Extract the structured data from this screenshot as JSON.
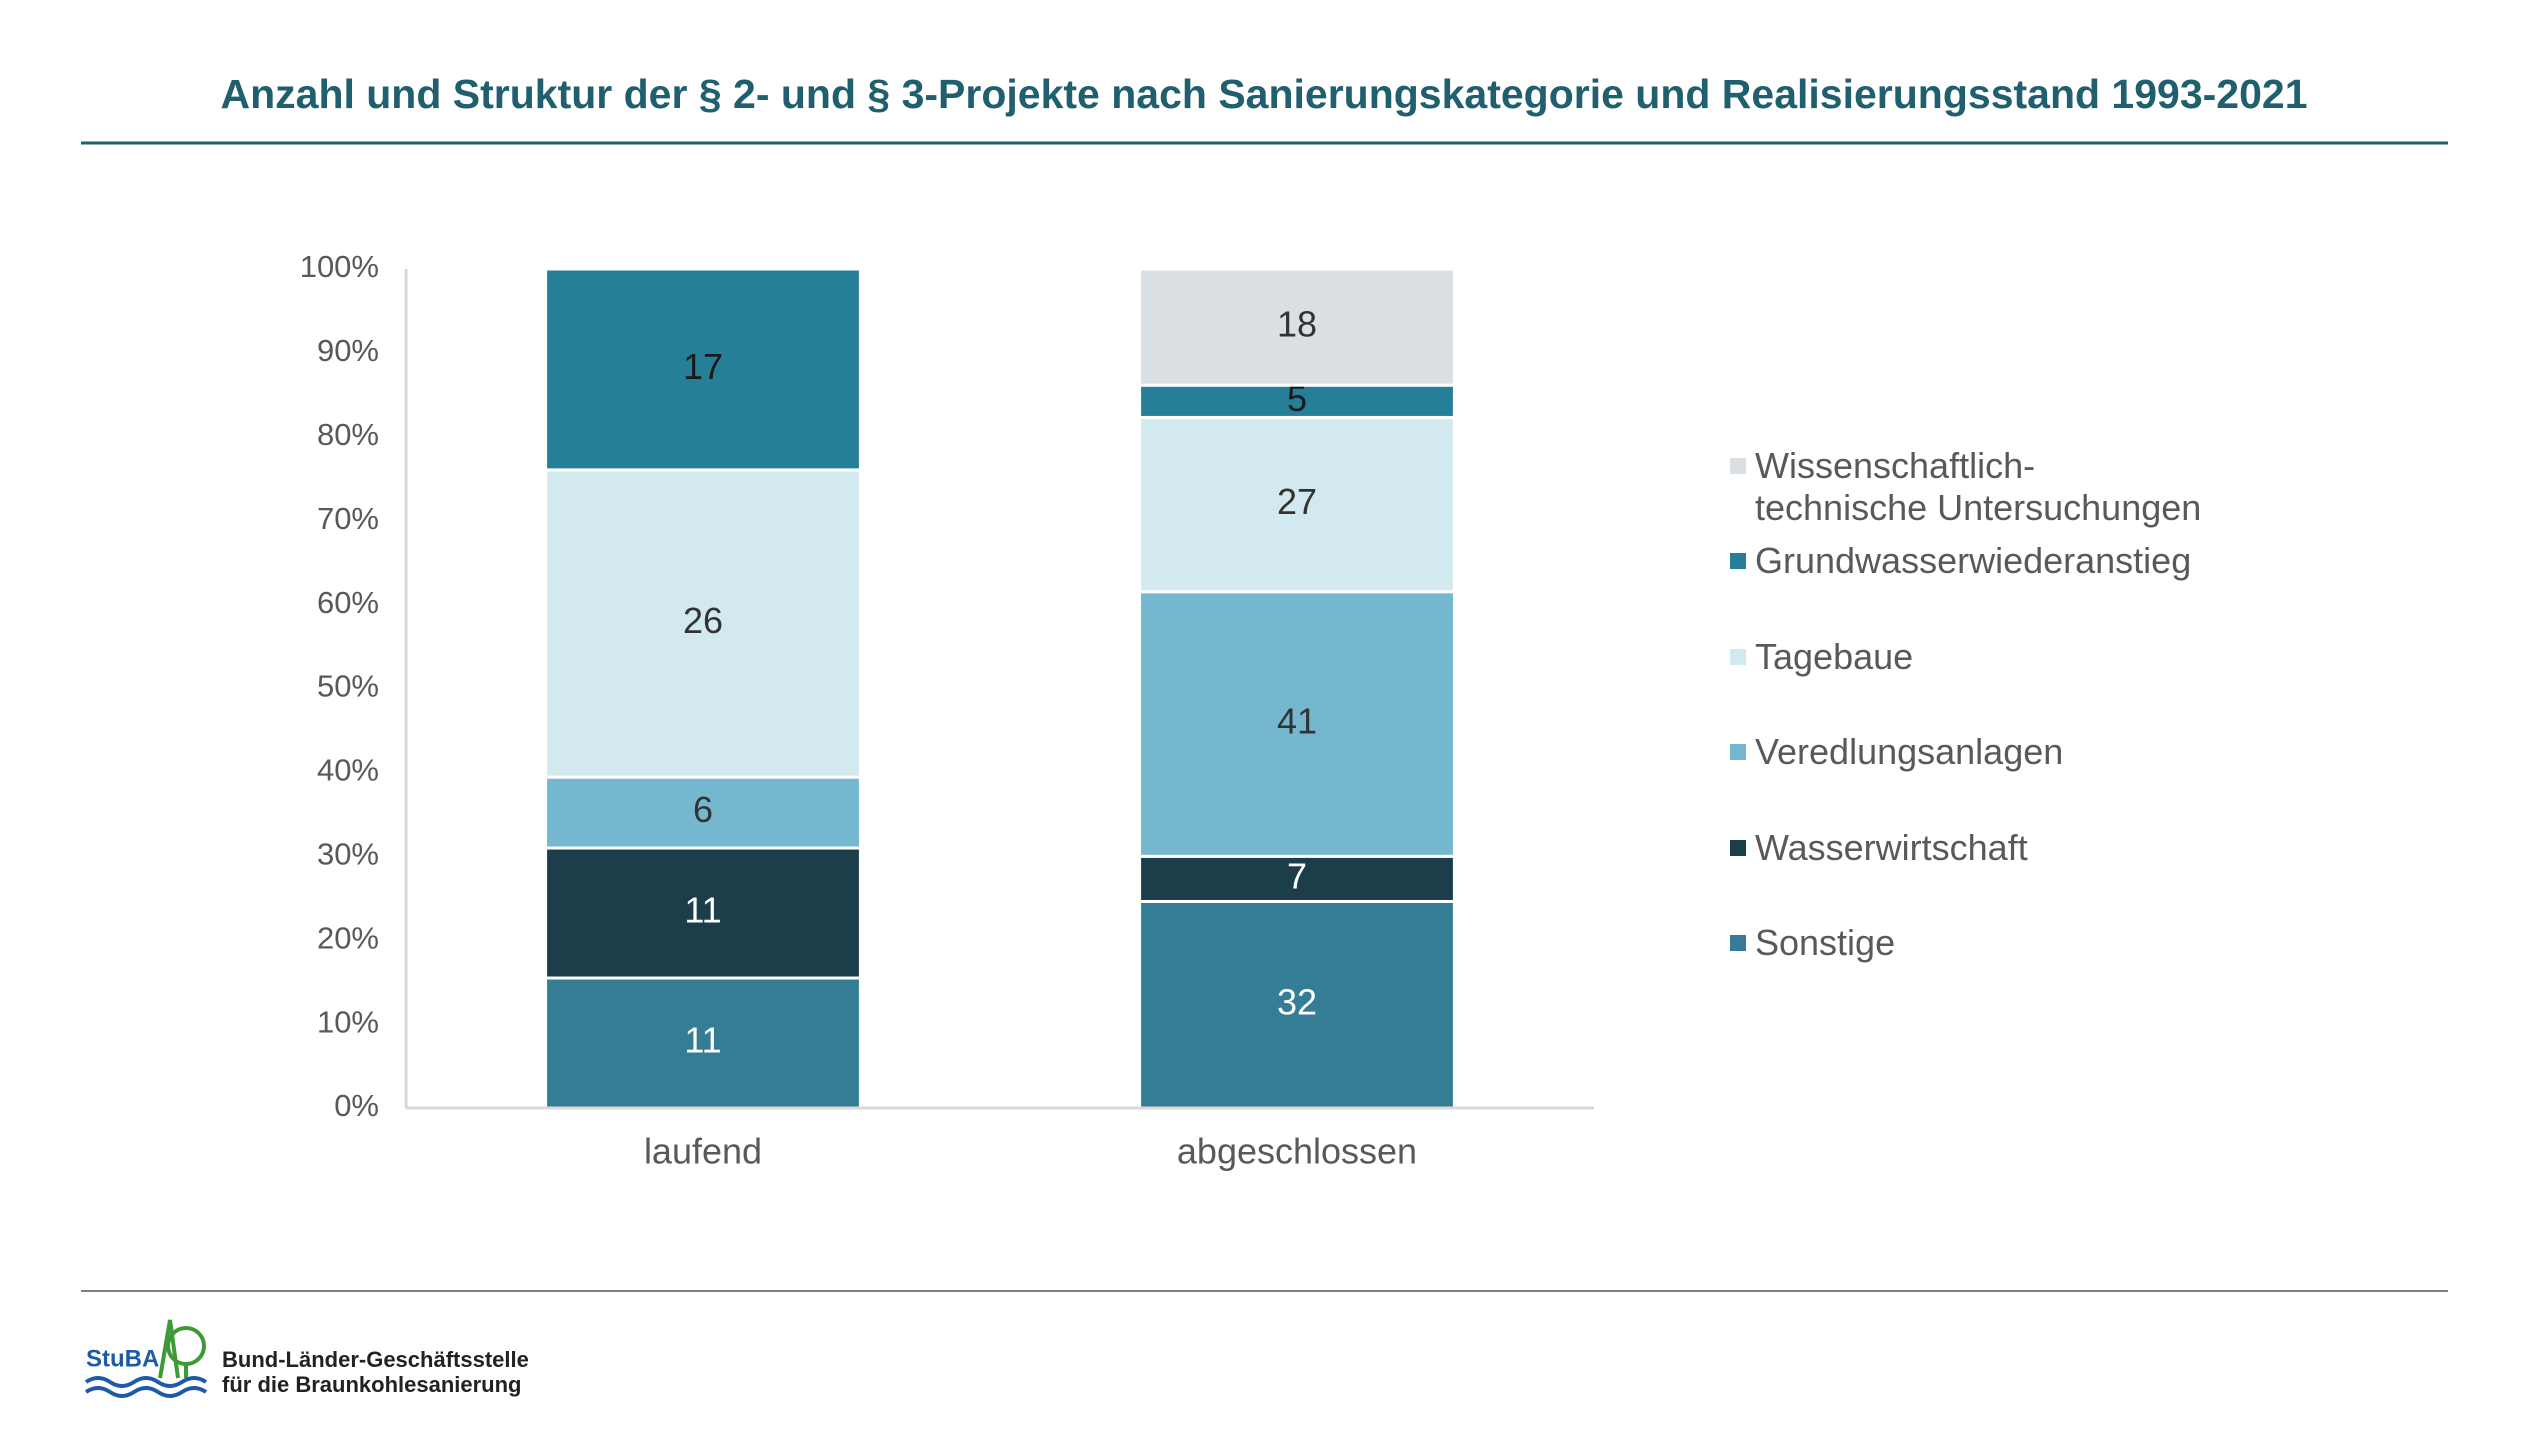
{
  "chart_data": {
    "type": "stacked_percent_bar",
    "title": "Anzahl und Struktur der § 2- und § 3-Projekte nach Sanierungskategorie und Realisierungsstand 1993-2021",
    "categories": [
      "laufend",
      "abgeschlossen"
    ],
    "series": [
      {
        "name": "Sonstige",
        "color": "#347d94",
        "label_color": "#ffffff",
        "values": [
          11,
          32
        ]
      },
      {
        "name": "Wasserwirtschaft",
        "color": "#1c3d4a",
        "label_color": "#ffffff",
        "values": [
          11,
          7
        ]
      },
      {
        "name": "Veredlungsanlagen",
        "color": "#74b7cf",
        "label_color": "#333333",
        "values": [
          6,
          41
        ]
      },
      {
        "name": "Tagebaue",
        "color": "#d3e9f0",
        "label_color": "#333333",
        "values": [
          26,
          27
        ]
      },
      {
        "name": "Grundwasserwiederanstieg",
        "color": "#267f98",
        "label_color": "#1a1a1a",
        "values": [
          17,
          5
        ]
      },
      {
        "name": "Wissenschaftlich-\ntechnische Untersuchungen",
        "color": "#d9dfe3",
        "label_color": "#333333",
        "values": [
          null,
          18
        ]
      }
    ],
    "ylim": [
      0,
      100
    ],
    "yticks": [
      {
        "value": 0,
        "label": "0%"
      },
      {
        "value": 10,
        "label": "10%"
      },
      {
        "value": 20,
        "label": "20%"
      },
      {
        "value": 30,
        "label": "30%"
      },
      {
        "value": 40,
        "label": "40%"
      },
      {
        "value": 50,
        "label": "50%"
      },
      {
        "value": 60,
        "label": "60%"
      },
      {
        "value": 70,
        "label": "70%"
      },
      {
        "value": 80,
        "label": "80%"
      },
      {
        "value": 90,
        "label": "90%"
      },
      {
        "value": 100,
        "label": "100%"
      }
    ],
    "legend": "right"
  },
  "footer": {
    "logo": "StuBA",
    "line1": "Bund-Länder-Geschäftsstelle",
    "line2": "für die Braunkohlesanierung"
  }
}
